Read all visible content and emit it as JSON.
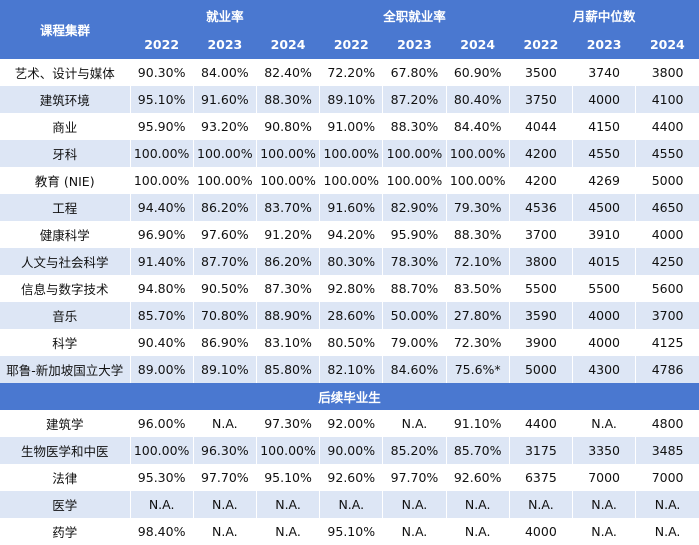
{
  "header": {
    "category_label": "课程集群",
    "groups": [
      "就业率",
      "全职就业率",
      "月薪中位数"
    ],
    "years": [
      "2022",
      "2023",
      "2024"
    ]
  },
  "rows": [
    [
      "艺术、设计与媒体",
      "90.30%",
      "84.00%",
      "82.40%",
      "72.20%",
      "67.80%",
      "60.90%",
      "3500",
      "3740",
      "3800"
    ],
    [
      "建筑环境",
      "95.10%",
      "91.60%",
      "88.30%",
      "89.10%",
      "87.20%",
      "80.40%",
      "3750",
      "4000",
      "4100"
    ],
    [
      "商业",
      "95.90%",
      "93.20%",
      "90.80%",
      "91.00%",
      "88.30%",
      "84.40%",
      "4044",
      "4150",
      "4400"
    ],
    [
      "牙科",
      "100.00%",
      "100.00%",
      "100.00%",
      "100.00%",
      "100.00%",
      "100.00%",
      "4200",
      "4550",
      "4550"
    ],
    [
      "教育 (NIE)",
      "100.00%",
      "100.00%",
      "100.00%",
      "100.00%",
      "100.00%",
      "100.00%",
      "4200",
      "4269",
      "5000"
    ],
    [
      "工程",
      "94.40%",
      "86.20%",
      "83.70%",
      "91.60%",
      "82.90%",
      "79.30%",
      "4536",
      "4500",
      "4650"
    ],
    [
      "健康科学",
      "96.90%",
      "97.60%",
      "91.20%",
      "94.20%",
      "95.90%",
      "88.30%",
      "3700",
      "3910",
      "4000"
    ],
    [
      "人文与社会科学",
      "91.40%",
      "87.70%",
      "86.20%",
      "80.30%",
      "78.30%",
      "72.10%",
      "3800",
      "4015",
      "4250"
    ],
    [
      "信息与数字技术",
      "94.80%",
      "90.50%",
      "87.30%",
      "92.80%",
      "88.70%",
      "83.50%",
      "5500",
      "5500",
      "5600"
    ],
    [
      "音乐",
      "85.70%",
      "70.80%",
      "88.90%",
      "28.60%",
      "50.00%",
      "27.80%",
      "3590",
      "4000",
      "3700"
    ],
    [
      "科学",
      "90.40%",
      "86.90%",
      "83.10%",
      "80.50%",
      "79.00%",
      "72.30%",
      "3900",
      "4000",
      "4125"
    ],
    [
      "耶鲁-新加坡国立大学",
      "89.00%",
      "89.10%",
      "85.80%",
      "82.10%",
      "84.60%",
      "75.6%*",
      "5000",
      "4300",
      "4786"
    ]
  ],
  "section_label": "后续毕业生",
  "rows2": [
    [
      "建筑学",
      "96.00%",
      "N.A.",
      "97.30%",
      "92.00%",
      "N.A.",
      "91.10%",
      "4400",
      "N.A.",
      "4800"
    ],
    [
      "生物医学和中医",
      "100.00%",
      "96.30%",
      "100.00%",
      "90.00%",
      "85.20%",
      "85.70%",
      "3175",
      "3350",
      "3485"
    ],
    [
      "法律",
      "95.30%",
      "97.70%",
      "95.10%",
      "92.60%",
      "97.70%",
      "92.60%",
      "6375",
      "7000",
      "7000"
    ],
    [
      "医学",
      "N.A.",
      "N.A.",
      "N.A.",
      "N.A.",
      "N.A.",
      "N.A.",
      "N.A.",
      "N.A.",
      "N.A."
    ],
    [
      "药学",
      "98.40%",
      "N.A.",
      "N.A.",
      "95.10%",
      "N.A.",
      "N.A.",
      "4000",
      "N.A.",
      "N.A."
    ]
  ]
}
